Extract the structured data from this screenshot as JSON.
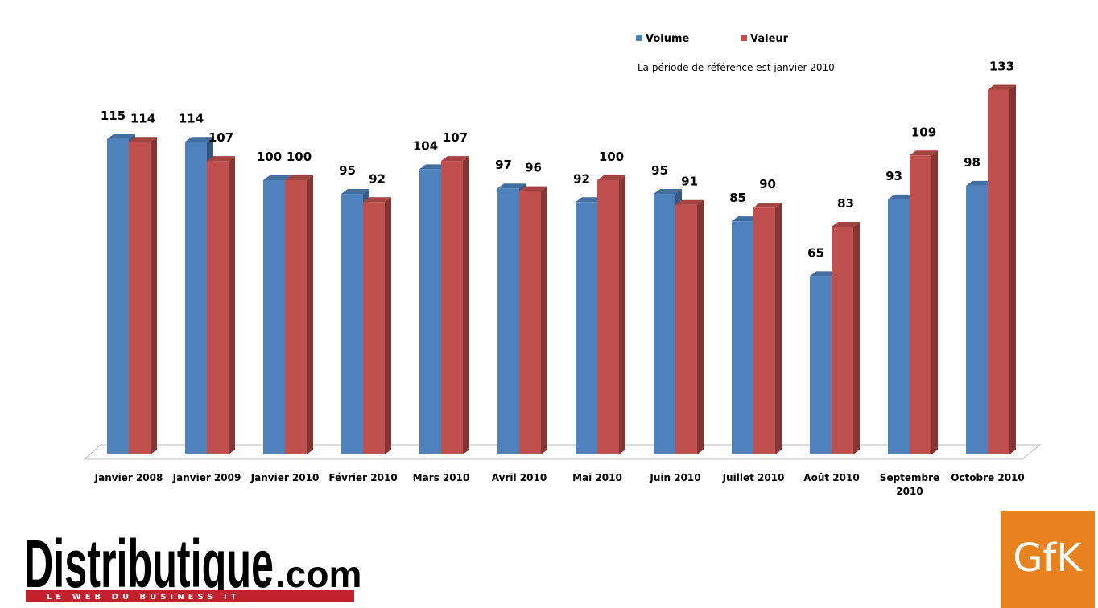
{
  "chart_data": {
    "type": "bar",
    "note": "La période de référence est janvier 2010",
    "categories": [
      "Janvier 2008",
      "Janvier 2009",
      "Janvier 2010",
      "Février 2010",
      "Mars 2010",
      "Avril 2010",
      "Mai 2010",
      "Juin 2010",
      "Juillet 2010",
      "Août 2010",
      "Septembre 2010",
      "Octobre 2010"
    ],
    "series": [
      {
        "name": "Volume",
        "color": "#4f81bd",
        "values": [
          115,
          114,
          100,
          95,
          104,
          97,
          92,
          95,
          85,
          65,
          93,
          98
        ]
      },
      {
        "name": "Valeur",
        "color": "#c0504d",
        "values": [
          114,
          107,
          100,
          92,
          107,
          96,
          100,
          91,
          90,
          83,
          109,
          133
        ]
      }
    ]
  },
  "branding": {
    "site": "Distributique",
    "domain": ".com",
    "tagline": "LE WEB DU BUSINESS IT",
    "partner": "GfK"
  }
}
